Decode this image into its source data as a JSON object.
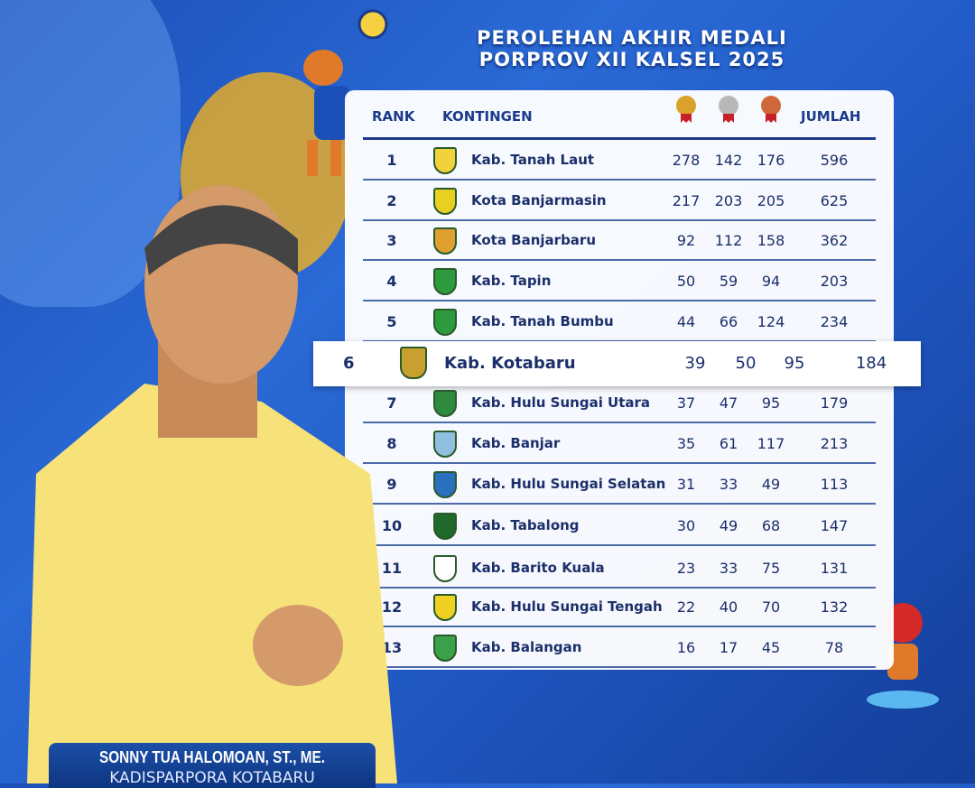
{
  "title": {
    "line1": "PEROLEHAN AKHIR MEDALI",
    "line2": "PORPROV XII KALSEL 2025"
  },
  "table": {
    "headers": {
      "rank": "RANK",
      "contingent": "KONTINGEN",
      "gold": "1",
      "silver": "2",
      "bronze": "3",
      "total": "JUMLAH"
    },
    "medal_colors": {
      "gold": "#d9a22a",
      "silver": "#b8b8b8",
      "bronze": "#d0673a"
    },
    "rows": [
      {
        "rank": "1",
        "name": "Kab. Tanah Laut",
        "gold": "278",
        "silver": "142",
        "bronze": "176",
        "total": "596",
        "logo_color": "#f2d23a"
      },
      {
        "rank": "2",
        "name": "Kota Banjarmasin",
        "gold": "217",
        "silver": "203",
        "bronze": "205",
        "total": "625",
        "logo_color": "#e8d020"
      },
      {
        "rank": "3",
        "name": "Kota Banjarbaru",
        "gold": "92",
        "silver": "112",
        "bronze": "158",
        "total": "362",
        "logo_color": "#e0a030"
      },
      {
        "rank": "4",
        "name": "Kab. Tapin",
        "gold": "50",
        "silver": "59",
        "bronze": "94",
        "total": "203",
        "logo_color": "#2e9a3e"
      },
      {
        "rank": "5",
        "name": "Kab. Tanah Bumbu",
        "gold": "44",
        "silver": "66",
        "bronze": "124",
        "total": "234",
        "logo_color": "#2e9a3e"
      },
      {
        "rank": "6",
        "name": "Kab. Kotabaru",
        "gold": "39",
        "silver": "50",
        "bronze": "95",
        "total": "184",
        "logo_color": "#c9a030",
        "highlighted": true
      },
      {
        "rank": "7",
        "name": "Kab. Hulu Sungai Utara",
        "gold": "37",
        "silver": "47",
        "bronze": "95",
        "total": "179",
        "logo_color": "#2e8a3e"
      },
      {
        "rank": "8",
        "name": "Kab. Banjar",
        "gold": "35",
        "silver": "61",
        "bronze": "117",
        "total": "213",
        "logo_color": "#8fc0e0"
      },
      {
        "rank": "9",
        "name": "Kab. Hulu Sungai Selatan",
        "gold": "31",
        "silver": "33",
        "bronze": "49",
        "total": "113",
        "logo_color": "#2a70c0"
      },
      {
        "rank": "10",
        "name": "Kab. Tabalong",
        "gold": "30",
        "silver": "49",
        "bronze": "68",
        "total": "147",
        "logo_color": "#1f6a2a"
      },
      {
        "rank": "11",
        "name": "Kab. Barito Kuala",
        "gold": "23",
        "silver": "33",
        "bronze": "75",
        "total": "131",
        "logo_color": "#ffffff"
      },
      {
        "rank": "12",
        "name": "Kab. Hulu Sungai Tengah",
        "gold": "22",
        "silver": "40",
        "bronze": "70",
        "total": "132",
        "logo_color": "#f0d020"
      },
      {
        "rank": "13",
        "name": "Kab. Balangan",
        "gold": "16",
        "silver": "17",
        "bronze": "45",
        "total": "78",
        "logo_color": "#3aa04a"
      }
    ]
  },
  "person": {
    "name": "SONNY TUA HALOMOAN, ST., ME.",
    "position": "KADISPARPORA KOTABARU"
  }
}
